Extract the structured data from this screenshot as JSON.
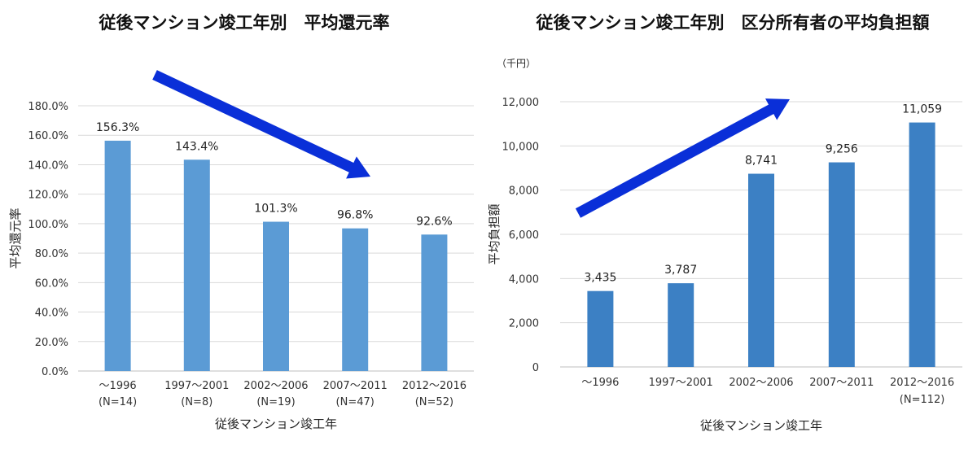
{
  "chart_data": [
    {
      "type": "bar",
      "title": "従後マンション竣工年別　平均還元率",
      "xlabel": "従後マンション竣工年",
      "ylabel": "平均還元率",
      "ylim": [
        0,
        180
      ],
      "yticks": [
        "0.0%",
        "20.0%",
        "40.0%",
        "60.0%",
        "80.0%",
        "100.0%",
        "120.0%",
        "140.0%",
        "160.0%",
        "180.0%"
      ],
      "categories": [
        "〜1996",
        "1997〜2001",
        "2002〜2006",
        "2007〜2011",
        "2012〜2016"
      ],
      "category_notes": [
        "(N=14)",
        "(N=8)",
        "(N=19)",
        "(N=47)",
        "(N=52)"
      ],
      "values": [
        156.3,
        143.4,
        101.3,
        96.8,
        92.6
      ],
      "data_labels": [
        "156.3%",
        "143.4%",
        "101.3%",
        "96.8%",
        "92.6%"
      ],
      "grid": true,
      "bar_color": "#5b9bd5",
      "trend_arrow_color": "#0a2fd8"
    },
    {
      "type": "bar",
      "title": "従後マンション竣工年別　区分所有者の平均負担額",
      "unit": "（千円）",
      "xlabel": "従後マンション竣工年",
      "ylabel": "平均負担額",
      "ylim": [
        0,
        12000
      ],
      "yticks": [
        "0",
        "2,000",
        "4,000",
        "6,000",
        "8,000",
        "10,000",
        "12,000"
      ],
      "categories": [
        "〜1996",
        "1997〜2001",
        "2002〜2006",
        "2007〜2011",
        "2012〜2016"
      ],
      "category_notes": [
        "",
        "",
        "",
        "",
        "(N=112)"
      ],
      "values": [
        3435,
        3787,
        8741,
        9256,
        11059
      ],
      "data_labels": [
        "3,435",
        "3,787",
        "8,741",
        "9,256",
        "11,059"
      ],
      "grid": true,
      "bar_color": "#3c80c4",
      "trend_arrow_color": "#0a2fd8"
    }
  ]
}
